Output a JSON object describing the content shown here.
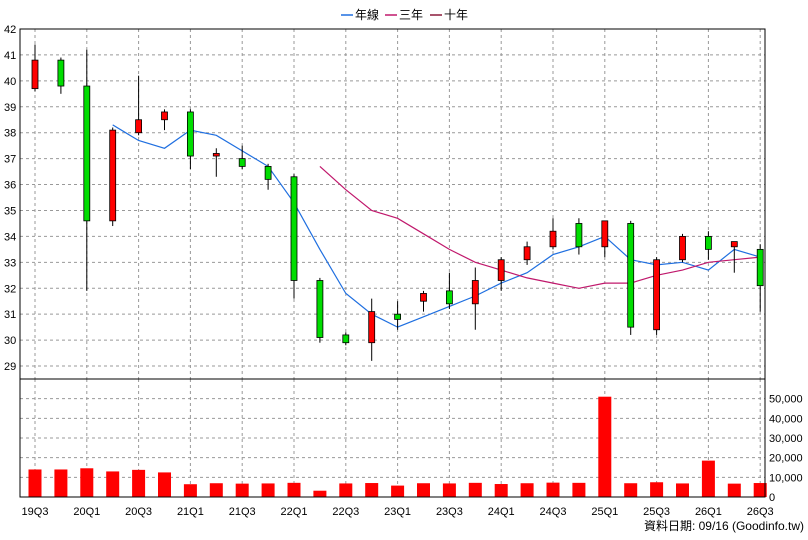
{
  "legend": {
    "items": [
      {
        "label": "年線",
        "color": "#1f6fe0"
      },
      {
        "label": "三年",
        "color": "#c0186c"
      },
      {
        "label": "十年",
        "color": "#8b1a3a"
      }
    ]
  },
  "footer": {
    "text": "資料日期: 09/16  (Goodinfo.tw)"
  },
  "chart_data": [
    {
      "type": "candlestick",
      "title": "",
      "ylim": [
        28.5,
        42
      ],
      "y_ticks": [
        "42",
        "41",
        "40",
        "39",
        "38",
        "37",
        "36",
        "35",
        "34",
        "33",
        "32",
        "31",
        "30",
        "29"
      ],
      "x_labels": [
        "19Q3",
        "20Q1",
        "20Q3",
        "21Q1",
        "21Q3",
        "22Q1",
        "22Q3",
        "23Q1",
        "23Q3",
        "24Q1",
        "24Q3",
        "25Q1",
        "25Q3",
        "26Q1",
        "26Q3"
      ],
      "candles": [
        {
          "x": "19Q3",
          "open": 39.7,
          "close": 40.8,
          "high": 41.4,
          "low": 39.6
        },
        {
          "x": "19Q4",
          "open": 40.8,
          "close": 39.8,
          "high": 40.9,
          "low": 39.5
        },
        {
          "x": "20Q1",
          "open": 39.8,
          "close": 34.6,
          "high": 41.2,
          "low": 31.9
        },
        {
          "x": "20Q2",
          "open": 34.6,
          "close": 38.1,
          "high": 38.2,
          "low": 34.4
        },
        {
          "x": "20Q3",
          "open": 38.0,
          "close": 38.5,
          "high": 40.2,
          "low": 37.9
        },
        {
          "x": "20Q4",
          "open": 38.5,
          "close": 38.8,
          "high": 38.9,
          "low": 38.1
        },
        {
          "x": "21Q1",
          "open": 38.8,
          "close": 37.1,
          "high": 38.9,
          "low": 36.6
        },
        {
          "x": "21Q2",
          "open": 37.1,
          "close": 37.2,
          "high": 37.4,
          "low": 36.3
        },
        {
          "x": "21Q3",
          "open": 37.0,
          "close": 36.7,
          "high": 37.5,
          "low": 36.6
        },
        {
          "x": "21Q4",
          "open": 36.7,
          "close": 36.2,
          "high": 36.8,
          "low": 35.8
        },
        {
          "x": "22Q1",
          "open": 36.3,
          "close": 32.3,
          "high": 36.4,
          "low": 31.6
        },
        {
          "x": "22Q2",
          "open": 32.3,
          "close": 30.1,
          "high": 32.4,
          "low": 29.9
        },
        {
          "x": "22Q3",
          "open": 30.2,
          "close": 29.9,
          "high": 30.3,
          "low": 29.8
        },
        {
          "x": "22Q4",
          "open": 29.9,
          "close": 31.1,
          "high": 31.6,
          "low": 29.2
        },
        {
          "x": "23Q1",
          "open": 31.0,
          "close": 30.8,
          "high": 31.5,
          "low": 30.4
        },
        {
          "x": "23Q2",
          "open": 31.5,
          "close": 31.8,
          "high": 31.9,
          "low": 31.1
        },
        {
          "x": "23Q3",
          "open": 31.9,
          "close": 31.4,
          "high": 32.6,
          "low": 31.2
        },
        {
          "x": "23Q4",
          "open": 31.4,
          "close": 32.3,
          "high": 32.8,
          "low": 30.4
        },
        {
          "x": "24Q1",
          "open": 32.3,
          "close": 33.1,
          "high": 33.2,
          "low": 31.9
        },
        {
          "x": "24Q2",
          "open": 33.1,
          "close": 33.6,
          "high": 33.8,
          "low": 32.9
        },
        {
          "x": "24Q3",
          "open": 33.6,
          "close": 34.2,
          "high": 34.7,
          "low": 33.5
        },
        {
          "x": "24Q4",
          "open": 34.5,
          "close": 33.6,
          "high": 34.7,
          "low": 33.3
        },
        {
          "x": "25Q1",
          "open": 33.6,
          "close": 34.6,
          "high": 34.6,
          "low": 33.2
        },
        {
          "x": "25Q2",
          "open": 34.5,
          "close": 30.5,
          "high": 34.6,
          "low": 30.2
        },
        {
          "x": "25Q3",
          "open": 30.4,
          "close": 33.1,
          "high": 33.2,
          "low": 30.2
        },
        {
          "x": "25Q4",
          "open": 33.1,
          "close": 34.0,
          "high": 34.1,
          "low": 33.0
        },
        {
          "x": "26Q1",
          "open": 34.0,
          "close": 33.5,
          "high": 34.2,
          "low": 33.1
        },
        {
          "x": "26Q2",
          "open": 33.6,
          "close": 33.8,
          "high": 33.8,
          "low": 32.6
        },
        {
          "x": "26Q3",
          "open": 33.5,
          "close": 32.1,
          "high": 33.7,
          "low": 31.1
        }
      ],
      "series": [
        {
          "name": "年線",
          "color": "#1f6fe0",
          "points": [
            [
              3,
              38.3
            ],
            [
              4,
              37.7
            ],
            [
              5,
              37.4
            ],
            [
              6,
              38.1
            ],
            [
              7,
              37.9
            ],
            [
              8,
              37.3
            ],
            [
              9,
              36.7
            ],
            [
              10,
              35.3
            ],
            [
              11,
              33.5
            ],
            [
              12,
              31.8
            ],
            [
              13,
              31.0
            ],
            [
              14,
              30.5
            ],
            [
              15,
              30.9
            ],
            [
              16,
              31.3
            ],
            [
              17,
              31.7
            ],
            [
              18,
              32.2
            ],
            [
              19,
              32.6
            ],
            [
              20,
              33.3
            ],
            [
              21,
              33.6
            ],
            [
              22,
              34.0
            ],
            [
              23,
              33.1
            ],
            [
              24,
              32.9
            ],
            [
              25,
              33.0
            ],
            [
              26,
              32.7
            ],
            [
              27,
              33.5
            ],
            [
              28,
              33.2
            ]
          ]
        },
        {
          "name": "三年",
          "color": "#c0186c",
          "points": [
            [
              11,
              36.7
            ],
            [
              12,
              35.8
            ],
            [
              13,
              35.0
            ],
            [
              14,
              34.7
            ],
            [
              15,
              34.1
            ],
            [
              16,
              33.5
            ],
            [
              17,
              33.0
            ],
            [
              18,
              32.7
            ],
            [
              19,
              32.4
            ],
            [
              20,
              32.2
            ],
            [
              21,
              32.0
            ],
            [
              22,
              32.2
            ],
            [
              23,
              32.2
            ],
            [
              24,
              32.5
            ],
            [
              25,
              32.7
            ],
            [
              26,
              33.0
            ],
            [
              27,
              33.1
            ],
            [
              28,
              33.2
            ]
          ]
        }
      ]
    },
    {
      "type": "bar",
      "title": "",
      "ylim": [
        0,
        60000
      ],
      "y_ticks": [
        "50,000",
        "40,000",
        "30,000",
        "20,000",
        "10,000",
        "0"
      ],
      "categories": [
        "19Q3",
        "19Q4",
        "20Q1",
        "20Q2",
        "20Q3",
        "20Q4",
        "21Q1",
        "21Q2",
        "21Q3",
        "21Q4",
        "22Q1",
        "22Q2",
        "22Q3",
        "22Q4",
        "23Q1",
        "23Q2",
        "23Q3",
        "23Q4",
        "24Q1",
        "24Q2",
        "24Q3",
        "24Q4",
        "25Q1",
        "25Q2",
        "25Q3",
        "25Q4",
        "26Q1",
        "26Q2",
        "26Q3"
      ],
      "values": [
        14000,
        14000,
        14600,
        13000,
        13800,
        12500,
        6500,
        7000,
        6800,
        6900,
        7200,
        3200,
        6900,
        7100,
        5800,
        7000,
        6900,
        7200,
        6600,
        7000,
        7300,
        7200,
        51000,
        7000,
        7500,
        6900,
        18500,
        6800,
        7100
      ],
      "color": "#ff0000"
    }
  ]
}
